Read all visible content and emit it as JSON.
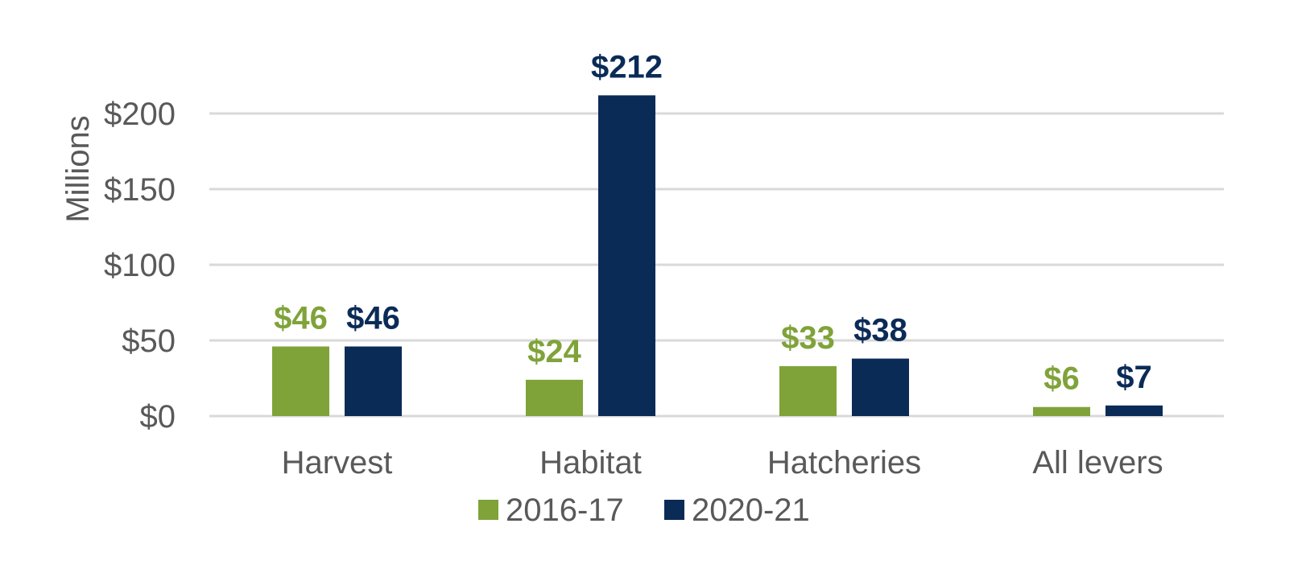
{
  "chart_data": {
    "type": "bar",
    "categories": [
      "Harvest",
      "Habitat",
      "Hatcheries",
      "All levers"
    ],
    "series": [
      {
        "name": "2016-17",
        "values": [
          46,
          24,
          33,
          6
        ],
        "labels": [
          "$46",
          "$24",
          "$33",
          "$6"
        ],
        "color": "#7fa339"
      },
      {
        "name": "2020-21",
        "values": [
          46,
          212,
          38,
          7
        ],
        "labels": [
          "$46",
          "$212",
          "$38",
          "$7"
        ],
        "color": "#0b2b57"
      }
    ],
    "ylabel": "Millions",
    "ylim": [
      0,
      200
    ],
    "yticks": [
      0,
      50,
      100,
      150,
      200
    ],
    "ytick_labels": [
      "$0",
      "$50",
      "$100",
      "$150",
      "$200"
    ],
    "grid": true,
    "legend_position": "bottom"
  }
}
